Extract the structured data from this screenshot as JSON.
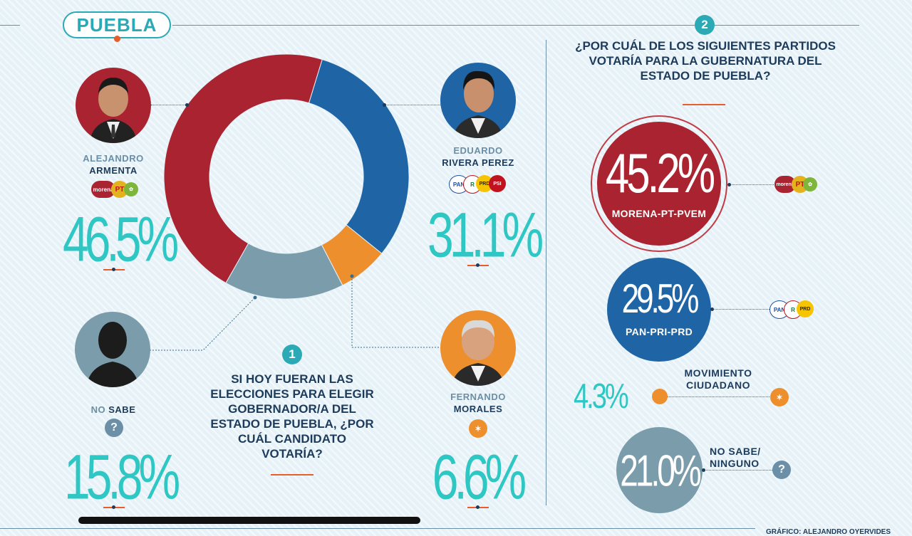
{
  "region": "PUEBLA",
  "q1": {
    "number": "1",
    "question": "SI HOY FUERAN LAS ELECCIONES PARA ELEGIR GOBERNADOR/A DEL ESTADO DE PUEBLA, ¿POR CUÁL CANDIDATO VOTARÍA?",
    "candidates": [
      {
        "first": "ALEJANDRO",
        "last": "ARMENTA",
        "pct": "46.5%",
        "color": "#a92330",
        "logos": [
          "morena",
          "PT",
          "PVEM"
        ]
      },
      {
        "first": "EDUARDO",
        "last": "RIVERA PEREZ",
        "pct": "31.1%",
        "color": "#1f65a5",
        "logos": [
          "PAN",
          "PRI",
          "PRD",
          "PSI"
        ]
      },
      {
        "first": "FERNANDO",
        "last": "MORALES",
        "pct": "6.6%",
        "color": "#ee8f2e",
        "logos": [
          "MC"
        ]
      },
      {
        "first": "NO",
        "last": "SABE",
        "pct": "15.8%",
        "color": "#7a9cab",
        "logos": [
          "?"
        ]
      }
    ]
  },
  "q2": {
    "number": "2",
    "question": "¿POR CUÁL DE LOS SIGUIENTES PARTIDOS VOTARÍA PARA LA GUBERNATURA DEL ESTADO DE PUEBLA?",
    "results": [
      {
        "pct": "45.2%",
        "label": "MORENA-PT-PVEM",
        "color": "#a92330"
      },
      {
        "pct": "29.5%",
        "label": "PAN-PRI-PRD",
        "color": "#1f65a5"
      },
      {
        "pct": "4.3%",
        "label": "MOVIMIENTO CIUDADANO",
        "color": "#ee8f2e"
      },
      {
        "pct": "21.0%",
        "label": "NO SABE/ NINGUNO",
        "color": "#7a9cab"
      }
    ]
  },
  "credit": "GRÁFICO: ALEJANDRO OYERVIDES",
  "chart_data": [
    {
      "type": "pie",
      "categories": [
        "ALEJANDRO ARMENTA",
        "EDUARDO RIVERA PEREZ",
        "FERNANDO MORALES",
        "NO SABE"
      ],
      "values": [
        46.5,
        31.1,
        6.6,
        15.8
      ],
      "colors": [
        "#a92330",
        "#1f65a5",
        "#ee8f2e",
        "#7a9cab"
      ]
    },
    {
      "type": "bar",
      "categories": [
        "MORENA-PT-PVEM",
        "PAN-PRI-PRD",
        "MOVIMIENTO CIUDADANO",
        "NO SABE/ NINGUNO"
      ],
      "values": [
        45.2,
        29.5,
        4.3,
        21.0
      ]
    }
  ]
}
